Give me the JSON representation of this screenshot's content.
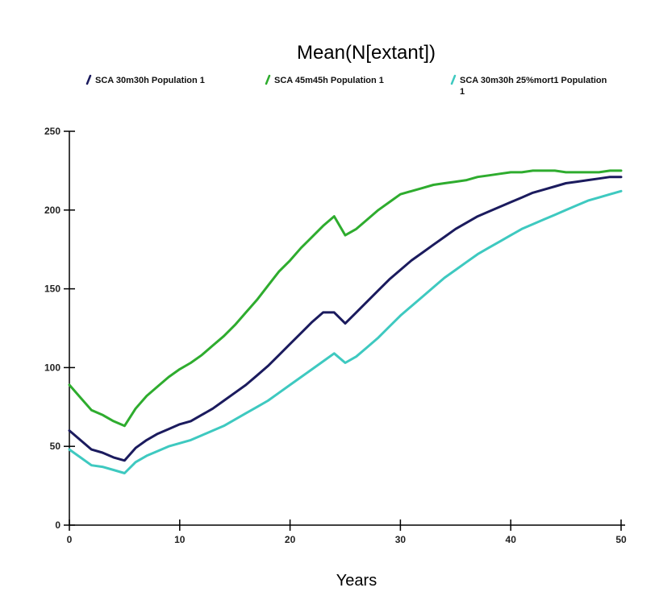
{
  "chart_data": {
    "type": "line",
    "title": "Mean(N[extant])",
    "xlabel": "Years",
    "ylabel": "",
    "xlim": [
      0,
      50
    ],
    "ylim": [
      0,
      250
    ],
    "x_ticks": [
      0,
      10,
      20,
      30,
      40,
      50
    ],
    "y_ticks": [
      0,
      50,
      100,
      150,
      200,
      250
    ],
    "grid": false,
    "legend_position": "top",
    "x": [
      0,
      1,
      2,
      3,
      4,
      5,
      6,
      7,
      8,
      9,
      10,
      11,
      12,
      13,
      14,
      15,
      16,
      17,
      18,
      19,
      20,
      21,
      22,
      23,
      24,
      25,
      26,
      27,
      28,
      29,
      30,
      31,
      32,
      33,
      34,
      35,
      36,
      37,
      38,
      39,
      40,
      41,
      42,
      43,
      44,
      45,
      46,
      47,
      48,
      49,
      50
    ],
    "series": [
      {
        "name": "SCA 30m30h Population 1",
        "color": "#1b1b5e",
        "values": [
          60,
          54,
          48,
          46,
          43,
          41,
          49,
          54,
          58,
          61,
          64,
          66,
          70,
          74,
          79,
          84,
          89,
          95,
          101,
          108,
          115,
          122,
          129,
          135,
          135,
          128,
          135,
          142,
          149,
          156,
          162,
          168,
          173,
          178,
          183,
          188,
          192,
          196,
          199,
          202,
          205,
          208,
          211,
          213,
          215,
          217,
          218,
          219,
          220,
          221,
          221
        ]
      },
      {
        "name": "SCA 45m45h Population 1",
        "color": "#2eac2e",
        "values": [
          89,
          81,
          73,
          70,
          66,
          63,
          74,
          82,
          88,
          94,
          99,
          103,
          108,
          114,
          120,
          127,
          135,
          143,
          152,
          161,
          168,
          176,
          183,
          190,
          196,
          184,
          188,
          194,
          200,
          205,
          210,
          212,
          214,
          216,
          217,
          218,
          219,
          221,
          222,
          223,
          224,
          224,
          225,
          225,
          225,
          224,
          224,
          224,
          224,
          225,
          225
        ]
      },
      {
        "name": "SCA 30m30h 25%mort1 Population 1",
        "color": "#3ec9c0",
        "values": [
          48,
          43,
          38,
          37,
          35,
          33,
          40,
          44,
          47,
          50,
          52,
          54,
          57,
          60,
          63,
          67,
          71,
          75,
          79,
          84,
          89,
          94,
          99,
          104,
          109,
          103,
          107,
          113,
          119,
          126,
          133,
          139,
          145,
          151,
          157,
          162,
          167,
          172,
          176,
          180,
          184,
          188,
          191,
          194,
          197,
          200,
          203,
          206,
          208,
          210,
          212
        ]
      }
    ]
  }
}
